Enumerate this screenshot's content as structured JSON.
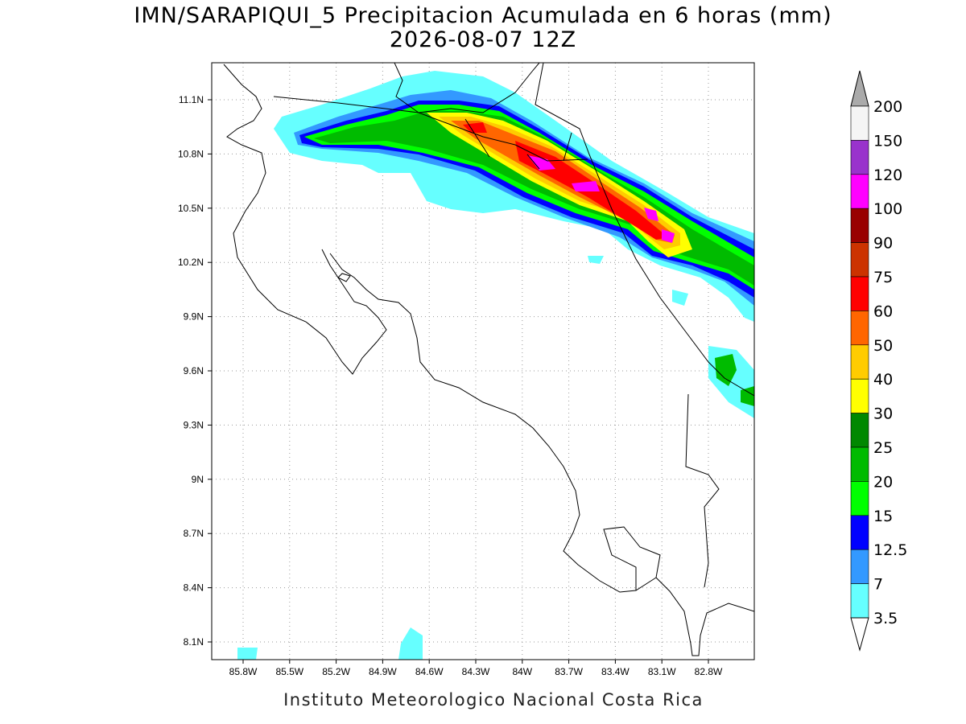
{
  "title": [
    "IMN/SARAPIQUI_5 Precipitacion Acumulada en 6 horas (mm)",
    "2026-08-07 12Z"
  ],
  "map": {
    "lat_labels": [
      "11.1N",
      "10.8N",
      "10.5N",
      "10.2N",
      "9.9N",
      "9.6N",
      "9.3N",
      "9N",
      "8.7N",
      "8.4N",
      "8.1N"
    ],
    "lon_labels": [
      "85.8W",
      "85.5W",
      "85.2W",
      "84.9W",
      "84.6W",
      "84.3W",
      "84W",
      "83.7W",
      "83.4W",
      "83.1W",
      "82.8W"
    ]
  },
  "colorbar": {
    "labels": [
      "200",
      "150",
      "120",
      "100",
      "90",
      "75",
      "60",
      "50",
      "40",
      "30",
      "25",
      "20",
      "15",
      "12.5",
      "7",
      "3.5"
    ],
    "colors": [
      "#f5f5f5",
      "#9933cc",
      "#ff00ff",
      "#990000",
      "#cc3300",
      "#ff0000",
      "#ff6600",
      "#ffcc00",
      "#ffff00",
      "#008800",
      "#00bb00",
      "#00ff00",
      "#0000ff",
      "#3399ff",
      "#66ffff"
    ],
    "over_color": "#aaaaaa",
    "under_color": "#ffffff"
  },
  "footer": "Instituto Meteorologico Nacional Costa Rica"
}
